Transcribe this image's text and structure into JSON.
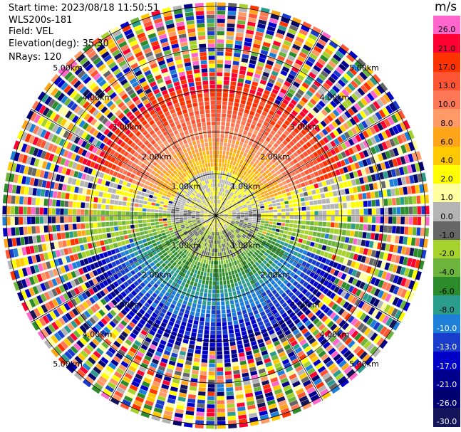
{
  "header": {
    "start_time": "Start time: 2023/08/18 11:50:51",
    "instrument": "WLS200s-181",
    "field": "Field: VEL",
    "elevation": "Elevation(deg): 35.30",
    "nrays": "NRays: 120"
  },
  "chart_data": {
    "type": "heatmap",
    "subtype": "polar-ppi",
    "field": "VEL",
    "units": "m/s",
    "n_rays": 120,
    "range_rings_km": [
      1.0,
      2.0,
      3.0,
      4.0,
      5.0
    ],
    "ring_labels": [
      "1.00km",
      "2.00km",
      "3.00km",
      "4.00km",
      "5.00km"
    ],
    "max_range_km": 5.1,
    "spokes_deg": [
      0,
      30,
      60,
      90,
      120,
      150,
      180,
      210,
      240,
      270,
      300,
      330
    ],
    "velocity_pattern": {
      "direction": "positive (toward 21 m/s) to the north, negative (toward -17 m/s) to the south",
      "core_low_speed_radius_km": 1.0,
      "noisy_beyond_km": 3.0
    },
    "colorbar": {
      "label": "m/s",
      "ticks": [
        "26.0",
        "21.0",
        "17.0",
        "13.0",
        "10.0",
        "8.0",
        "6.0",
        "4.0",
        "2.0",
        "1.0",
        "0.0",
        "-1.0",
        "-2.0",
        "-4.0",
        "-6.0",
        "-8.0",
        "-10.0",
        "-13.0",
        "-17.0",
        "-21.0",
        "-26.0",
        "-30.0"
      ],
      "colors": [
        "#ff66cc",
        "#ff0033",
        "#ff3300",
        "#ff5533",
        "#ff7755",
        "#ff9966",
        "#ffa51a",
        "#ffc800",
        "#ffff00",
        "#ffffa0",
        "#b4b4b4",
        "#666666",
        "#a5d22d",
        "#6cb43c",
        "#2c8c2c",
        "#2a9d8f",
        "#1e7fd8",
        "#1a3ccc",
        "#0000c8",
        "#00008c",
        "#000070",
        "#14145a"
      ]
    }
  }
}
